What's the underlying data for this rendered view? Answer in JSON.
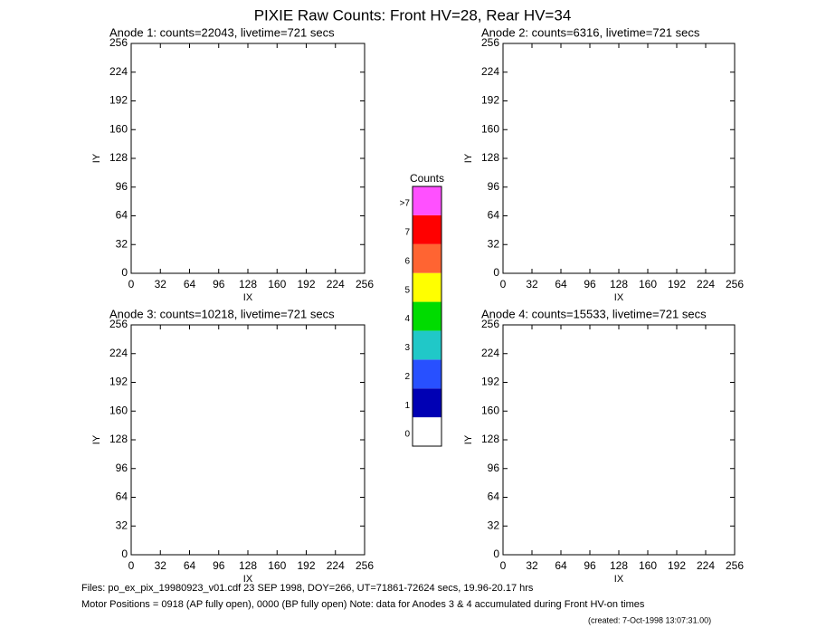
{
  "title": "PIXIE Raw Counts:  Front HV=28, Rear HV=34",
  "chart_data": [
    {
      "type": "heatmap",
      "title": "Anode 1: counts=22043, livetime=721 secs",
      "xlabel": "IX",
      "ylabel": "IY",
      "xlim": [
        0,
        256
      ],
      "ylim": [
        0,
        256
      ],
      "xticks": [
        0,
        32,
        64,
        96,
        128,
        160,
        192,
        224,
        256
      ],
      "yticks": [
        0,
        32,
        64,
        96,
        128,
        160,
        192,
        224,
        256
      ]
    },
    {
      "type": "heatmap",
      "title": "Anode 2: counts=6316, livetime=721 secs",
      "xlabel": "IX",
      "ylabel": "IY",
      "xlim": [
        0,
        256
      ],
      "ylim": [
        0,
        256
      ],
      "xticks": [
        0,
        32,
        64,
        96,
        128,
        160,
        192,
        224,
        256
      ],
      "yticks": [
        0,
        32,
        64,
        96,
        128,
        160,
        192,
        224,
        256
      ]
    },
    {
      "type": "heatmap",
      "title": "Anode 3: counts=10218, livetime=721 secs",
      "xlabel": "IX",
      "ylabel": "IY",
      "xlim": [
        0,
        256
      ],
      "ylim": [
        0,
        256
      ],
      "xticks": [
        0,
        32,
        64,
        96,
        128,
        160,
        192,
        224,
        256
      ],
      "yticks": [
        0,
        32,
        64,
        96,
        128,
        160,
        192,
        224,
        256
      ]
    },
    {
      "type": "heatmap",
      "title": "Anode 4: counts=15533, livetime=721 secs",
      "xlabel": "IX",
      "ylabel": "IY",
      "xlim": [
        0,
        256
      ],
      "ylim": [
        0,
        256
      ],
      "xticks": [
        0,
        32,
        64,
        96,
        128,
        160,
        192,
        224,
        256
      ],
      "yticks": [
        0,
        32,
        64,
        96,
        128,
        160,
        192,
        224,
        256
      ]
    }
  ],
  "colorbar": {
    "title": "Counts",
    "labels": [
      0,
      1,
      2,
      3,
      4,
      5,
      6,
      7,
      ">7"
    ],
    "colors": [
      "#ffffff",
      "#0000b4",
      "#2850ff",
      "#20c8c8",
      "#00dc00",
      "#ffff00",
      "#ff6432",
      "#ff0000",
      "#ff50ff"
    ]
  },
  "footer": [
    "Files: po_ex_pix_19980923_v01.cdf     23 SEP 1998, DOY=266, UT=71861-72624 secs, 19.96-20.17 hrs",
    "Motor Positions = 0918 (AP fully open), 0000 (BP fully open)    Note: data for Anodes 3 & 4 accumulated during Front HV-on times",
    "(created:  7-Oct-1998 13:07:31.00)"
  ]
}
